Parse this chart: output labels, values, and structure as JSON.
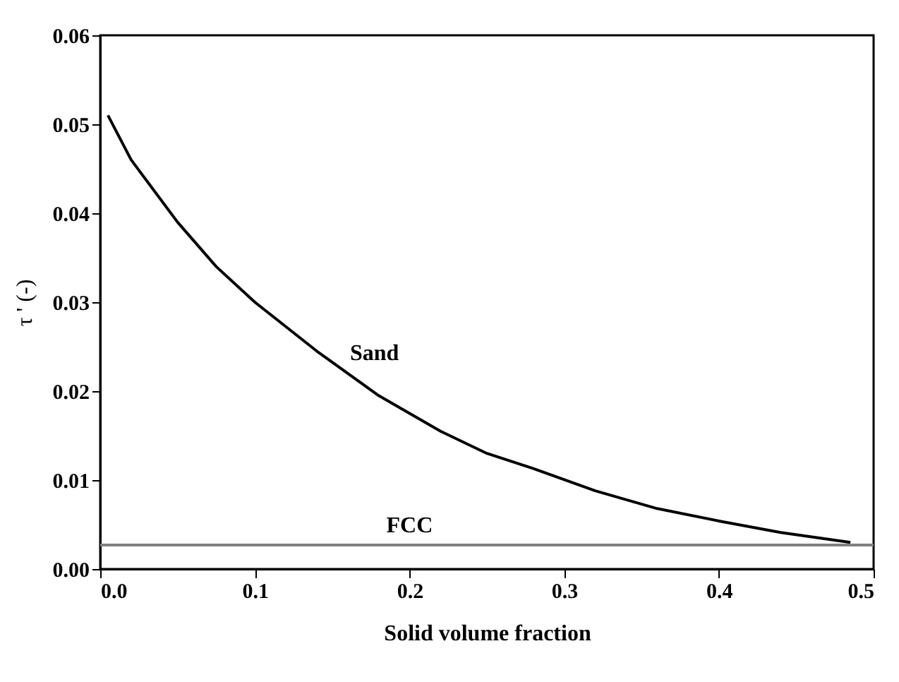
{
  "chart_data": {
    "type": "line",
    "xlabel": "Solid volume fraction",
    "ylabel": "τ ' (-)",
    "xlim": [
      0,
      0.5
    ],
    "ylim": [
      0,
      0.06
    ],
    "xticks": [
      {
        "value": 0,
        "label": "0.0"
      },
      {
        "value": 0.1,
        "label": "0.1"
      },
      {
        "value": 0.2,
        "label": "0.2"
      },
      {
        "value": 0.3,
        "label": "0.3"
      },
      {
        "value": 0.4,
        "label": "0.4"
      },
      {
        "value": 0.5,
        "label": "0.5"
      }
    ],
    "yticks": [
      {
        "value": 0,
        "label": "0.00"
      },
      {
        "value": 0.01,
        "label": "0.01"
      },
      {
        "value": 0.02,
        "label": "0.02"
      },
      {
        "value": 0.03,
        "label": "0.03"
      },
      {
        "value": 0.04,
        "label": "0.04"
      },
      {
        "value": 0.05,
        "label": "0.05"
      },
      {
        "value": 0.06,
        "label": "0.06"
      }
    ],
    "grid": false,
    "marker": "none",
    "line_style": "solid",
    "series": [
      {
        "color": "#000000",
        "x": [
          0.005,
          0.02,
          0.05,
          0.075,
          0.1,
          0.14,
          0.18,
          0.22,
          0.25,
          0.28,
          0.32,
          0.36,
          0.4,
          0.44,
          0.485
        ],
        "values": [
          0.051,
          0.046,
          0.039,
          0.034,
          0.03,
          0.0245,
          0.0195,
          0.0155,
          0.013,
          0.0113,
          0.0088,
          0.0068,
          0.0054,
          0.0041,
          0.003
        ]
      },
      {
        "color": "#808080",
        "x": [
          0,
          0.5
        ],
        "values": [
          0.0027,
          0.0027
        ]
      }
    ],
    "annotations": [
      "Sand",
      "FCC"
    ]
  }
}
